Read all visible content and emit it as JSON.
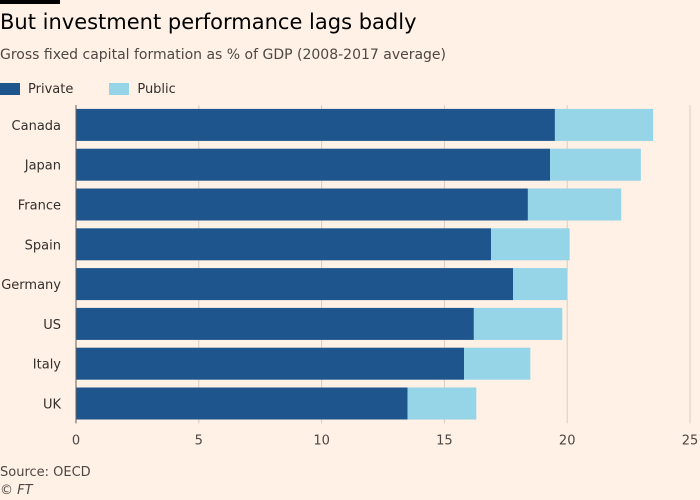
{
  "title": "But investment performance lags badly",
  "subtitle": "Gross fixed capital formation as % of GDP (2008-2017 average)",
  "source": "Source: OECD",
  "credit": "© FT",
  "colors": {
    "private": "#1e558c",
    "public": "#96d4e8",
    "grid": "#d9cdc3",
    "background": "#fff1e5"
  },
  "chart_data": {
    "type": "bar",
    "orientation": "horizontal",
    "stacked": true,
    "categories": [
      "Canada",
      "Japan",
      "France",
      "Spain",
      "Germany",
      "US",
      "Italy",
      "UK"
    ],
    "series": [
      {
        "name": "Private",
        "values": [
          19.5,
          19.3,
          18.4,
          16.9,
          17.8,
          16.2,
          15.8,
          13.5
        ]
      },
      {
        "name": "Public",
        "values": [
          4.0,
          3.7,
          3.8,
          3.2,
          2.2,
          3.6,
          2.7,
          2.8
        ]
      }
    ],
    "xlim": [
      0,
      25
    ],
    "xticks": [
      0,
      5,
      10,
      15,
      20,
      25
    ],
    "xlabel": "",
    "ylabel": "",
    "grid": "vertical",
    "legend": "top-left"
  }
}
